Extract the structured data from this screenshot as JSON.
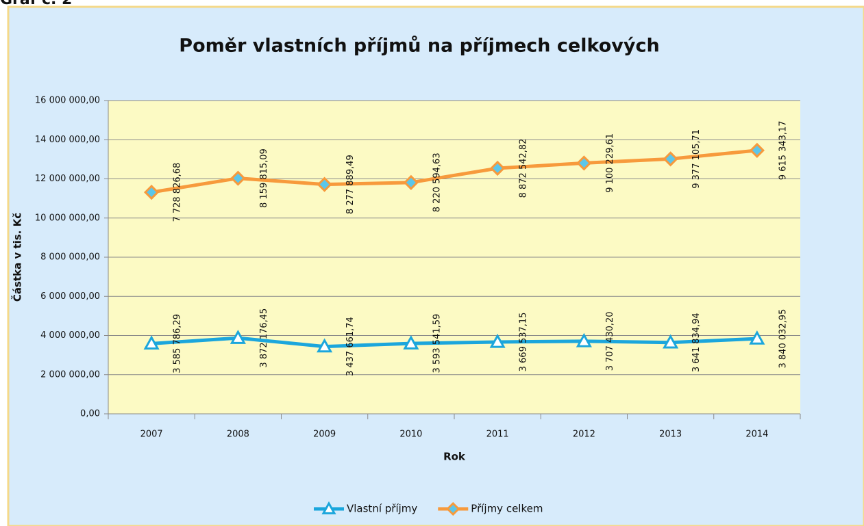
{
  "header": {
    "title": "Graf č. 2"
  },
  "chart_data": {
    "type": "line",
    "stacked": true,
    "title": "Poměr vlastních příjmů na příjmech celkových",
    "x_label": "Rok",
    "y_label": "Částka v tis. Kč",
    "categories": [
      "2007",
      "2008",
      "2009",
      "2010",
      "2011",
      "2012",
      "2013",
      "2014"
    ],
    "series": [
      {
        "name": "Vlastní příjmy",
        "color": "#1ba6dc",
        "marker": "triangle",
        "values": [
          3585786.29,
          3872176.45,
          3437661.74,
          3593541.59,
          3669537.15,
          3707430.2,
          3641834.94,
          3840032.95
        ],
        "value_labels": [
          "3 585 786,29",
          "3 872 176,45",
          "3 437 661,74",
          "3 593 541,59",
          "3 669 537,15",
          "3 707 430,20",
          "3 641 834,94",
          "3 840 032,95"
        ]
      },
      {
        "name": "Příjmy celkem",
        "color": "#f79a3c",
        "marker": "diamond",
        "values": [
          7728826.68,
          8159815.09,
          8277889.49,
          8220594.63,
          8872542.82,
          9100229.61,
          9377105.71,
          9615343.17
        ],
        "value_labels": [
          "7 728 826,68",
          "8 159 815,09",
          "8 277 889,49",
          "8 220 594,63",
          "8 872 542,82",
          "9 100 229,61",
          "9 377 105,71",
          "9 615 343,17"
        ]
      }
    ],
    "ylim": [
      0,
      16000000
    ],
    "yticks": [
      {
        "value": 0,
        "label": "0,00"
      },
      {
        "value": 2000000,
        "label": "2 000 000,00"
      },
      {
        "value": 4000000,
        "label": "4 000 000,00"
      },
      {
        "value": 6000000,
        "label": "6 000 000,00"
      },
      {
        "value": 8000000,
        "label": "8 000 000,00"
      },
      {
        "value": 10000000,
        "label": "10 000 000,00"
      },
      {
        "value": 12000000,
        "label": "12 000 000,00"
      },
      {
        "value": 14000000,
        "label": "14 000 000,00"
      },
      {
        "value": 16000000,
        "label": "16 000 000,00"
      }
    ],
    "grid": true,
    "legend": "bottom"
  }
}
